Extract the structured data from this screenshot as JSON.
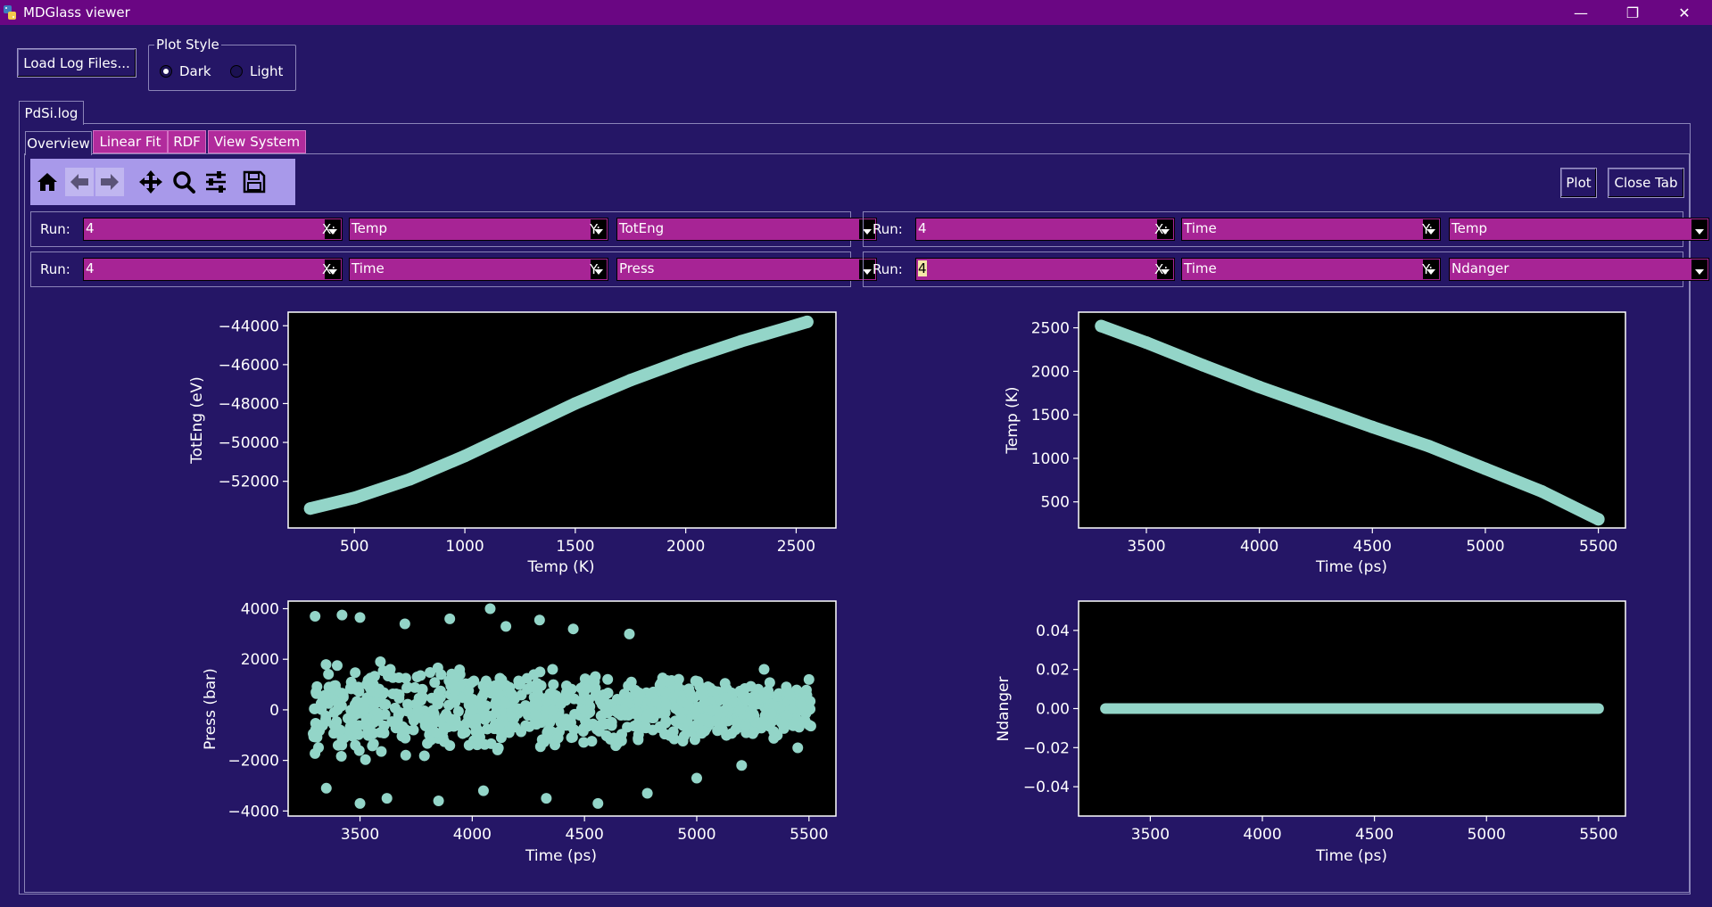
{
  "window": {
    "title": "MDGlass viewer",
    "minimize": "—",
    "restore": "❐",
    "close": "✕"
  },
  "load_button": "Load Log Files...",
  "plot_style": {
    "legend": "Plot Style",
    "options": [
      "Dark",
      "Light"
    ],
    "selected": "Dark"
  },
  "file_tab": "PdSi.log",
  "tabs": [
    "Overview",
    "Linear Fit",
    "RDF",
    "View System"
  ],
  "active_tab": "Overview",
  "toolbar_icons": [
    "home-icon",
    "back-arrow-icon",
    "forward-arrow-icon",
    "pan-icon",
    "zoom-icon",
    "configure-subplots-icon",
    "save-icon"
  ],
  "plot_button": "Plot",
  "close_tab_button": "Close Tab",
  "labels": {
    "run": "Run:",
    "x": "X:",
    "y": "Y:"
  },
  "selectors": [
    {
      "run": "4",
      "x": "Temp",
      "y": "TotEng"
    },
    {
      "run": "4",
      "x": "Time",
      "y": "Temp"
    },
    {
      "run": "4",
      "x": "Time",
      "y": "Press"
    },
    {
      "run": "4",
      "x": "Time",
      "y": "Ndanger"
    }
  ],
  "colors": {
    "marker": "#93d5c8",
    "background": "#251666",
    "plot_bg": "#000000",
    "accent": "#a72495"
  },
  "chart_data": [
    {
      "type": "scatter",
      "xlabel": "Temp (K)",
      "ylabel": "TotEng (eV)",
      "xlim": [
        200,
        2680
      ],
      "ylim": [
        -54400,
        -43300
      ],
      "xticks": [
        500,
        1000,
        1500,
        2000,
        2500
      ],
      "yticks": [
        -44000,
        -46000,
        -48000,
        -50000,
        -52000
      ],
      "points": [
        [
          300,
          -53400
        ],
        [
          500,
          -52850
        ],
        [
          750,
          -51900
        ],
        [
          1000,
          -50700
        ],
        [
          1250,
          -49350
        ],
        [
          1500,
          -48000
        ],
        [
          1750,
          -46800
        ],
        [
          2000,
          -45750
        ],
        [
          2250,
          -44800
        ],
        [
          2550,
          -43800
        ]
      ]
    },
    {
      "type": "scatter",
      "xlabel": "Time (ps)",
      "ylabel": "Temp (K)",
      "xlim": [
        3200,
        5620
      ],
      "ylim": [
        200,
        2680
      ],
      "xticks": [
        3500,
        4000,
        4500,
        5000,
        5500
      ],
      "yticks": [
        500,
        1000,
        1500,
        2000,
        2500
      ],
      "points": [
        [
          3300,
          2520
        ],
        [
          3500,
          2330
        ],
        [
          3750,
          2070
        ],
        [
          4000,
          1820
        ],
        [
          4250,
          1590
        ],
        [
          4500,
          1360
        ],
        [
          4750,
          1140
        ],
        [
          5000,
          880
        ],
        [
          5250,
          620
        ],
        [
          5500,
          300
        ]
      ]
    },
    {
      "type": "scatter",
      "xlabel": "Time (ps)",
      "ylabel": "Press (bar)",
      "xlim": [
        3180,
        5620
      ],
      "ylim": [
        -4200,
        4300
      ],
      "xticks": [
        3500,
        4000,
        4500,
        5000,
        5500
      ],
      "yticks": [
        4000,
        2000,
        0,
        -2000,
        -4000
      ],
      "points": [
        [
          3300,
          3700
        ],
        [
          3420,
          3750
        ],
        [
          3500,
          3650
        ],
        [
          3700,
          3400
        ],
        [
          3900,
          3600
        ],
        [
          4080,
          4000
        ],
        [
          4150,
          3300
        ],
        [
          4300,
          3550
        ],
        [
          4450,
          3200
        ],
        [
          4700,
          3000
        ],
        [
          3350,
          -3100
        ],
        [
          3500,
          -3700
        ],
        [
          3620,
          -3500
        ],
        [
          3850,
          -3600
        ],
        [
          4050,
          -3200
        ],
        [
          4330,
          -3500
        ],
        [
          4560,
          -3700
        ],
        [
          4780,
          -3300
        ],
        [
          5000,
          -2700
        ],
        [
          5200,
          -2200
        ],
        [
          5450,
          -1500
        ],
        [
          5500,
          1200
        ],
        [
          5300,
          1600
        ],
        [
          3400,
          0
        ],
        [
          4000,
          0
        ],
        [
          4500,
          0
        ],
        [
          5000,
          0
        ],
        [
          5500,
          0
        ]
      ],
      "band": {
        "x": [
          3290,
          5510
        ],
        "spread_start": 2200,
        "spread_end": 1100
      }
    },
    {
      "type": "scatter",
      "xlabel": "Time (ps)",
      "ylabel": "Ndanger",
      "xlim": [
        3180,
        5620
      ],
      "ylim": [
        -0.055,
        0.055
      ],
      "xticks": [
        3500,
        4000,
        4500,
        5000,
        5500
      ],
      "yticks": [
        0.04,
        0.02,
        0.0,
        -0.02,
        -0.04
      ],
      "yformat": "fixed2",
      "points": [
        [
          3300,
          0
        ],
        [
          5500,
          0
        ]
      ],
      "line": [
        [
          3300,
          0
        ],
        [
          5500,
          0
        ]
      ]
    }
  ]
}
